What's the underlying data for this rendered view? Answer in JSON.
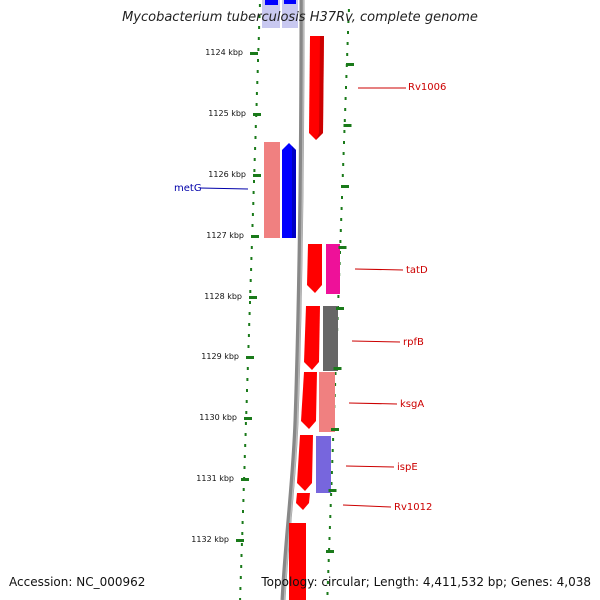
{
  "title": "Mycobacterium tuberculosis H37Rv, complete genome",
  "footer": {
    "accession": "Accession: NC_000962",
    "topology": "Topology: circular; Length: 4,411,532 bp; Genes: 4,038"
  },
  "kbp_ticks": [
    {
      "label": "1124 kbp"
    },
    {
      "label": "1125 kbp"
    },
    {
      "label": "1126 kbp"
    },
    {
      "label": "1127 kbp"
    },
    {
      "label": "1128 kbp"
    },
    {
      "label": "1129 kbp"
    },
    {
      "label": "1130 kbp"
    },
    {
      "label": "1131 kbp"
    },
    {
      "label": "1132 kbp"
    }
  ],
  "gene_labels": [
    {
      "name": "Rv1006",
      "color": "#cc0000"
    },
    {
      "name": "metG",
      "color": "#0000aa"
    },
    {
      "name": "tatD",
      "color": "#cc0000"
    },
    {
      "name": "rpfB",
      "color": "#cc0000"
    },
    {
      "name": "ksgA",
      "color": "#cc0000"
    },
    {
      "name": "ispE",
      "color": "#cc0000"
    },
    {
      "name": "Rv1012",
      "color": "#cc0000"
    }
  ],
  "colors": {
    "forward_gene": "#ff0000",
    "reverse_gene": "#0000ff",
    "light_red": "#f08080",
    "magenta": "#ee1199",
    "gray": "#666666",
    "purple": "#7766dd",
    "tick_green": "#1a7a1a",
    "backbone": "#888888"
  }
}
